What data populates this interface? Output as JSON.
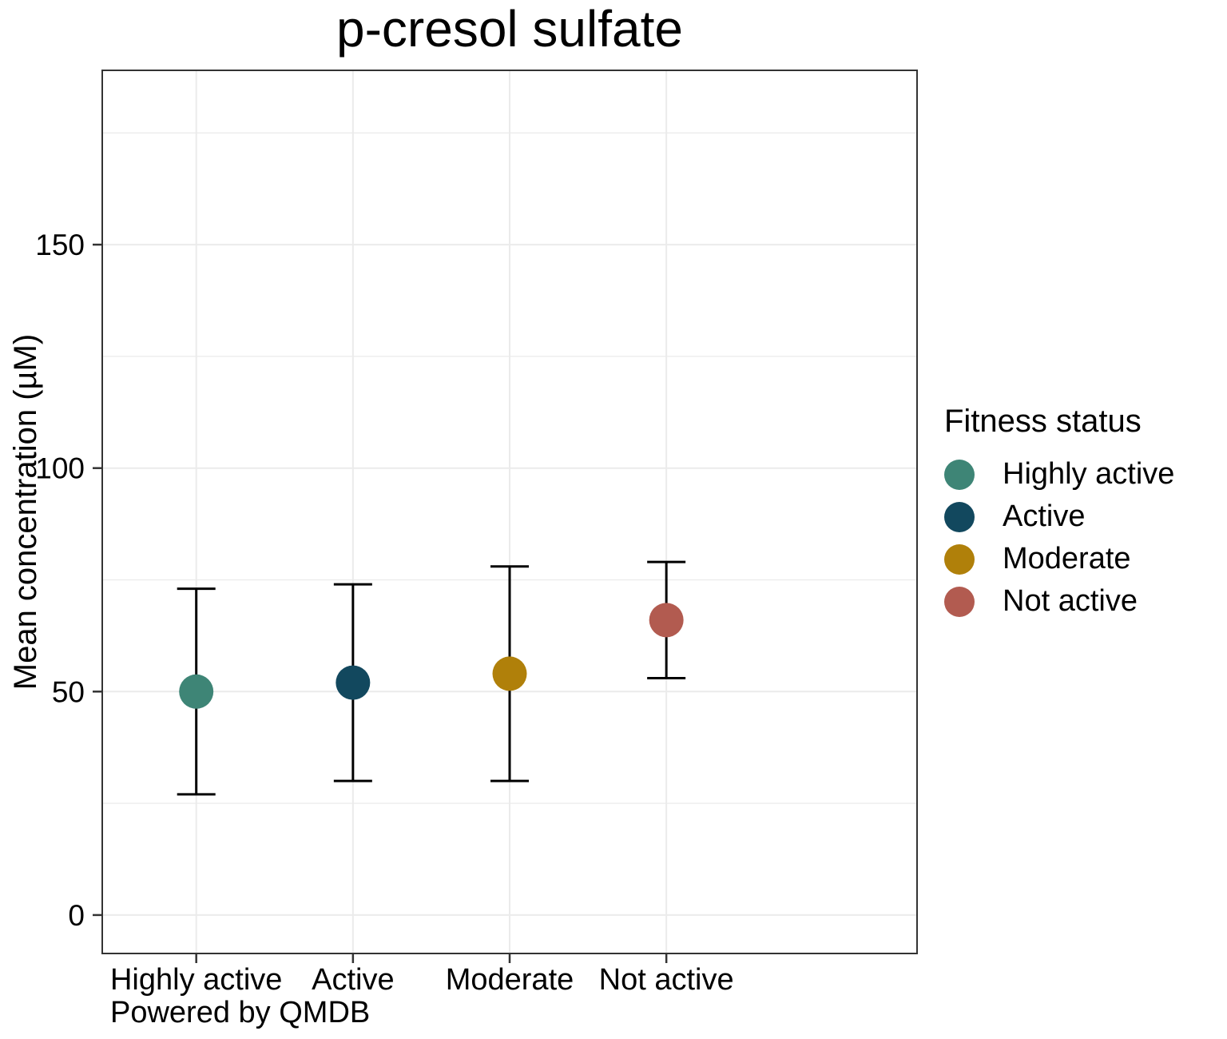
{
  "title": "p-cresol sulfate",
  "caption": "Powered by QMDB",
  "y_axis": {
    "label": "Mean concentration (µM)"
  },
  "legend": {
    "title": "Fitness status",
    "items": [
      {
        "label": "Highly active",
        "color": "#3E8576"
      },
      {
        "label": "Active",
        "color": "#12485E"
      },
      {
        "label": "Moderate",
        "color": "#B0800A"
      },
      {
        "label": "Not active",
        "color": "#B25B50"
      }
    ]
  },
  "chart_data": {
    "type": "scatter",
    "subtype": "mean-points-with-error-bars",
    "title": "p-cresol sulfate",
    "xlabel": "",
    "ylabel": "Mean concentration (µM)",
    "categories": [
      "Highly active",
      "Active",
      "Moderate",
      "Not active"
    ],
    "series": [
      {
        "name": "mean",
        "values": [
          50,
          52,
          54,
          66
        ]
      },
      {
        "name": "lower",
        "values": [
          27,
          30,
          30,
          53
        ]
      },
      {
        "name": "upper",
        "values": [
          73,
          74,
          78,
          79
        ]
      }
    ],
    "point_colors": [
      "#3E8576",
      "#12485E",
      "#B0800A",
      "#B25B50"
    ],
    "yticks": [
      0,
      50,
      100,
      150
    ],
    "minor_gridlines": [
      25,
      75,
      125,
      175
    ],
    "ylim": [
      -8.6,
      189
    ],
    "grid": "on",
    "legend_position": "right",
    "legend_title": "Fitness status",
    "caption": "Powered by QMDB"
  },
  "colors": {
    "background": "#FFFFFF",
    "grid": "#EBEBEB",
    "panel_border": "#333333",
    "tick": "#333333",
    "errorbar": "#000000",
    "text": "#000000"
  }
}
